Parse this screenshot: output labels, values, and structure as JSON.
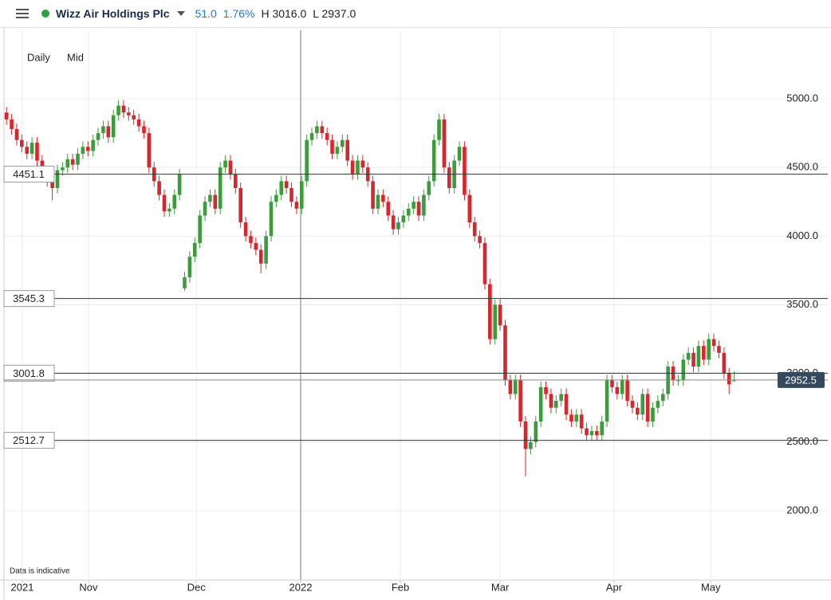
{
  "header": {
    "title": "Wizz Air Holdings Plc",
    "change": "51.0",
    "change_pct": "1.76%",
    "high_label": "H 3016.0",
    "low_label": "L 2937.0",
    "interval": "Daily",
    "price_type": "Mid"
  },
  "chart_data": {
    "type": "candlestick",
    "note": "Data is indicative",
    "up_color": "#3c9c3c",
    "down_color": "#d8262c",
    "xlim": [
      -0.5,
      161.4
    ],
    "xticks": [
      {
        "value": 3.1,
        "label": "2021"
      },
      {
        "value": 16.1,
        "label": "Nov"
      },
      {
        "value": 37.3,
        "label": "Dec"
      },
      {
        "value": 57.8,
        "label": "2022"
      },
      {
        "value": 77.4,
        "label": "Feb"
      },
      {
        "value": 97,
        "label": "Mar"
      },
      {
        "value": 119.4,
        "label": "Apr"
      },
      {
        "value": 138.4,
        "label": "May"
      }
    ],
    "ylim": [
      1495,
      5499
    ],
    "yticks": [
      {
        "value": 2000,
        "label": "2000.0"
      },
      {
        "value": 2500,
        "label": "2500.0"
      },
      {
        "value": 3000,
        "label": "3000.0"
      },
      {
        "value": 3500,
        "label": "3500.0"
      },
      {
        "value": 4000,
        "label": "4000.0"
      },
      {
        "value": 4500,
        "label": "4500.0"
      },
      {
        "value": 5000,
        "label": "5000.0"
      }
    ],
    "grid": true,
    "levels": [
      4451.1,
      3545.3,
      3001.8,
      2512.7
    ],
    "last_price": 2952.5,
    "open": [
      4900,
      4850,
      4780,
      4700,
      4650,
      4600,
      4680,
      4550,
      4450,
      4400,
      4350,
      4480,
      4500,
      4560,
      4520,
      4600,
      4650,
      4620,
      4700,
      4750,
      4800,
      4720,
      4880,
      4950,
      4900,
      4880,
      4850,
      4800,
      4750,
      4500,
      4400,
      4300,
      4180,
      4200,
      4300,
      3620,
      3700,
      3850,
      3950,
      4150,
      4250,
      4300,
      4200,
      4500,
      4550,
      4450,
      4350,
      4100,
      4000,
      3950,
      3900,
      3800,
      4000,
      4250,
      4300,
      4400,
      4350,
      4250,
      4200,
      4400,
      4700,
      4750,
      4800,
      4750,
      4700,
      4600,
      4650,
      4700,
      4550,
      4450,
      4550,
      4500,
      4400,
      4200,
      4300,
      4250,
      4150,
      4050,
      4100,
      4150,
      4200,
      4250,
      4150,
      4300,
      4400,
      4700,
      4850,
      4500,
      4350,
      4550,
      4650,
      4300,
      4100,
      4000,
      3950,
      3650,
      3250,
      3500,
      3350,
      2950,
      2850,
      2950,
      2650,
      2450,
      2500,
      2650,
      2900,
      2850,
      2750,
      2800,
      2850,
      2700,
      2650,
      2700,
      2600,
      2550,
      2580,
      2550,
      2650,
      2950,
      2900,
      2850,
      2950,
      2800,
      2750,
      2700,
      2850,
      2650,
      2750,
      2800,
      2850,
      3050,
      2950,
      2950,
      3100,
      3150,
      3050,
      3200,
      3100,
      3250,
      3200,
      3150,
      3000,
      2945
    ],
    "high": [
      4940,
      4890,
      4820,
      4740,
      4690,
      4720,
      4720,
      4590,
      4490,
      4440,
      4520,
      4540,
      4600,
      4600,
      4640,
      4690,
      4690,
      4740,
      4790,
      4840,
      4840,
      4920,
      4990,
      4990,
      4940,
      4920,
      4890,
      4840,
      4790,
      4540,
      4440,
      4340,
      4240,
      4340,
      4490,
      3740,
      3890,
      3990,
      4190,
      4290,
      4340,
      4340,
      4540,
      4590,
      4590,
      4490,
      4390,
      4140,
      4040,
      3990,
      3940,
      4040,
      4290,
      4340,
      4440,
      4440,
      4390,
      4290,
      4440,
      4740,
      4790,
      4840,
      4840,
      4790,
      4740,
      4690,
      4740,
      4740,
      4590,
      4590,
      4590,
      4540,
      4440,
      4340,
      4340,
      4290,
      4190,
      4140,
      4190,
      4240,
      4290,
      4290,
      4340,
      4440,
      4740,
      4890,
      4890,
      4540,
      4590,
      4690,
      4690,
      4340,
      4140,
      4040,
      3990,
      3690,
      3540,
      3540,
      3390,
      2990,
      2990,
      2990,
      2690,
      2540,
      2690,
      2940,
      2940,
      2890,
      2840,
      2890,
      2890,
      2740,
      2740,
      2740,
      2640,
      2620,
      2620,
      2690,
      2990,
      2990,
      2940,
      2990,
      2990,
      2840,
      2790,
      2890,
      2890,
      2790,
      2840,
      2890,
      3090,
      3090,
      2990,
      3140,
      3190,
      3190,
      3240,
      3240,
      3290,
      3290,
      3240,
      3190,
      3040,
      3016
    ],
    "low": [
      4810,
      4740,
      4660,
      4610,
      4560,
      4560,
      4510,
      4410,
      4360,
      4260,
      4310,
      4440,
      4460,
      4480,
      4480,
      4560,
      4580,
      4580,
      4660,
      4710,
      4680,
      4680,
      4840,
      4860,
      4840,
      4810,
      4760,
      4710,
      4460,
      4360,
      4260,
      4140,
      4140,
      4160,
      4260,
      3600,
      3660,
      3810,
      3910,
      4110,
      4210,
      4160,
      4160,
      4460,
      4410,
      4310,
      4060,
      3960,
      3910,
      3860,
      3730,
      3760,
      3960,
      4210,
      4260,
      4310,
      4210,
      4160,
      4160,
      4360,
      4660,
      4710,
      4710,
      4660,
      4560,
      4560,
      4610,
      4510,
      4410,
      4410,
      4460,
      4360,
      4160,
      4160,
      4210,
      4110,
      4010,
      4010,
      4060,
      4110,
      4160,
      4110,
      4110,
      4260,
      4360,
      4660,
      4460,
      4310,
      4310,
      4510,
      4260,
      4060,
      3960,
      3910,
      3610,
      3210,
      3210,
      3310,
      2910,
      2810,
      2810,
      2610,
      2250,
      2410,
      2460,
      2610,
      2810,
      2710,
      2710,
      2760,
      2660,
      2610,
      2610,
      2560,
      2510,
      2510,
      2510,
      2510,
      2610,
      2860,
      2810,
      2810,
      2760,
      2710,
      2660,
      2660,
      2610,
      2610,
      2710,
      2760,
      2810,
      2910,
      2910,
      2910,
      3060,
      3010,
      3010,
      3060,
      3060,
      3160,
      3110,
      2960,
      2850,
      2937
    ],
    "close": [
      4850,
      4780,
      4700,
      4650,
      4600,
      4680,
      4550,
      4450,
      4400,
      4350,
      4480,
      4500,
      4560,
      4520,
      4600,
      4650,
      4620,
      4700,
      4750,
      4800,
      4720,
      4880,
      4950,
      4900,
      4880,
      4850,
      4800,
      4750,
      4500,
      4400,
      4300,
      4180,
      4200,
      4300,
      4450,
      3700,
      3850,
      3950,
      4150,
      4250,
      4300,
      4200,
      4500,
      4550,
      4450,
      4350,
      4100,
      4000,
      3950,
      3900,
      3800,
      4000,
      4250,
      4300,
      4400,
      4350,
      4250,
      4200,
      4400,
      4700,
      4750,
      4800,
      4750,
      4700,
      4600,
      4650,
      4700,
      4550,
      4450,
      4550,
      4500,
      4400,
      4200,
      4300,
      4250,
      4150,
      4050,
      4100,
      4150,
      4200,
      4250,
      4150,
      4300,
      4400,
      4700,
      4850,
      4500,
      4350,
      4550,
      4650,
      4300,
      4100,
      4000,
      3950,
      3650,
      3250,
      3500,
      3350,
      2950,
      2850,
      2950,
      2650,
      2450,
      2500,
      2650,
      2900,
      2850,
      2750,
      2800,
      2850,
      2700,
      2650,
      2700,
      2600,
      2550,
      2580,
      2550,
      2650,
      2950,
      2900,
      2850,
      2950,
      2800,
      2750,
      2700,
      2850,
      2650,
      2750,
      2800,
      2850,
      3050,
      2950,
      2950,
      3100,
      3150,
      3050,
      3200,
      3100,
      3250,
      3200,
      3150,
      3000,
      2920,
      2952
    ]
  }
}
